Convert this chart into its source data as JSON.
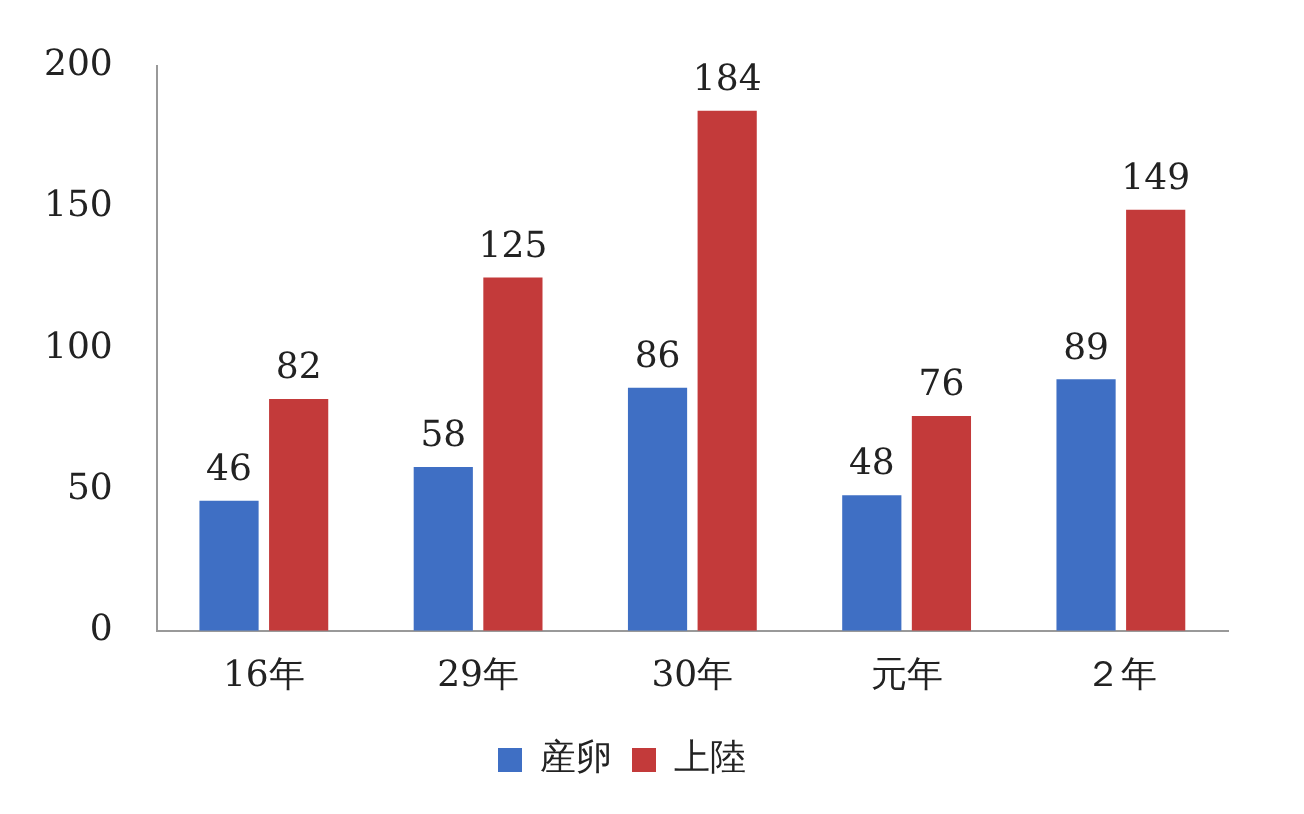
{
  "chart_data": {
    "type": "bar",
    "categories": [
      "16年",
      "29年",
      "30年",
      "元年",
      "２年"
    ],
    "series": [
      {
        "name": "産卵",
        "color": "#3f6fc4",
        "values": [
          46,
          58,
          86,
          48,
          89
        ]
      },
      {
        "name": "上陸",
        "color": "#c33a3a",
        "values": [
          82,
          125,
          184,
          76,
          149
        ]
      }
    ],
    "ylim": [
      0,
      200
    ],
    "yticks": [
      0,
      50,
      100,
      150,
      200
    ],
    "grid": false,
    "legend": "bottom",
    "data_labels": true
  }
}
